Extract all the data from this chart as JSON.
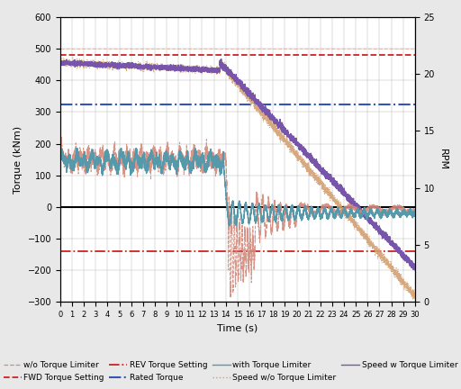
{
  "xlabel": "Time (s)",
  "ylabel_left": "Torque (kNm)",
  "ylabel_right": "RPM",
  "xlim": [
    0,
    30
  ],
  "ylim_left": [
    -300,
    600
  ],
  "ylim_right": [
    0,
    25
  ],
  "yticks_left": [
    -300,
    -200,
    -100,
    0,
    100,
    200,
    300,
    400,
    500,
    600
  ],
  "yticks_right": [
    0,
    5,
    10,
    15,
    20,
    25
  ],
  "xticks": [
    0,
    1,
    2,
    3,
    4,
    5,
    6,
    7,
    8,
    9,
    10,
    11,
    12,
    13,
    14,
    15,
    16,
    17,
    18,
    19,
    20,
    21,
    22,
    23,
    24,
    25,
    26,
    27,
    28,
    29,
    30
  ],
  "fwd_torque": 480,
  "rev_torque": -140,
  "rated_torque": 325,
  "fig_bg_color": "#e8e8e8",
  "plot_bg_color": "#ffffff",
  "wo_color": "#d4897a",
  "fwd_color": "#cc2222",
  "rev_color": "#cc2222",
  "rated_color": "#3355bb",
  "with_color": "#5599aa",
  "speed_wo_color": "#d4a070",
  "speed_w_color": "#7755aa",
  "axis_fontsize": 8,
  "tick_fontsize": 7,
  "legend_fontsize": 6.5
}
